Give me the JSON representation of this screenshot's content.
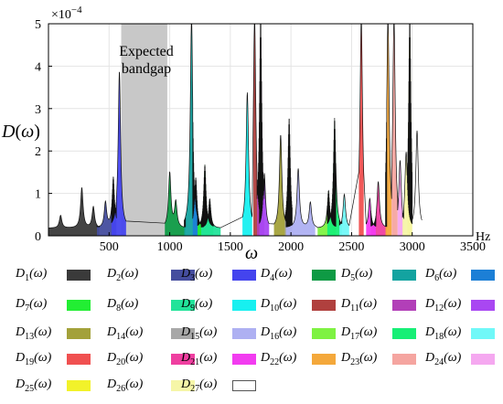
{
  "chart_data": {
    "type": "area",
    "ylabel": "D(ω)",
    "xlabel": "ω",
    "x_unit": "Hz",
    "y_exponent_label": "×10",
    "y_exponent_power": "−4",
    "xlim": [
      0,
      3500
    ],
    "ylim": [
      0,
      5
    ],
    "x_ticks": [
      500,
      1000,
      1500,
      2000,
      2500,
      3000,
      3500
    ],
    "y_ticks": [
      0,
      1,
      2,
      3,
      4,
      5
    ],
    "grid": true,
    "annotation": {
      "lines": [
        "Expected",
        "bandgap"
      ],
      "band_start": 600,
      "band_end": 980
    },
    "legend_placement": "bottom",
    "series": [
      {
        "name": "D1(ω)",
        "sub": "1",
        "color": "#3a3a3a",
        "range": [
          0,
          420
        ],
        "peaks": [
          [
            100,
            0.3
          ],
          [
            275,
            0.95
          ],
          [
            370,
            0.5
          ]
        ]
      },
      {
        "name": "D2(ω)",
        "sub": "2",
        "color": "#454d9e",
        "range": [
          400,
          560
        ],
        "peaks": [
          [
            470,
            0.6
          ],
          [
            535,
            1.2
          ]
        ]
      },
      {
        "name": "D3(ω)",
        "sub": "3",
        "color": "#4444ee",
        "range": [
          520,
          640
        ],
        "peaks": [
          [
            585,
            3.7
          ]
        ]
      },
      {
        "name": "D4(ω)",
        "sub": "4",
        "color": "#0e9a44",
        "range": [
          960,
          1130
        ],
        "peaks": [
          [
            1000,
            1.3
          ],
          [
            1050,
            0.6
          ]
        ]
      },
      {
        "name": "D5(ω)",
        "sub": "5",
        "color": "#13a3a0",
        "range": [
          1120,
          1240
        ],
        "peaks": [
          [
            1180,
            5.0
          ]
        ]
      },
      {
        "name": "D6(ω)",
        "sub": "6",
        "color": "#1c7fd6",
        "range": [
          1190,
          1280
        ],
        "peaks": [
          [
            1215,
            1.2
          ]
        ]
      },
      {
        "name": "D7(ω)",
        "sub": "7",
        "color": "#22ee33",
        "range": [
          1230,
          1360
        ],
        "peaks": [
          [
            1290,
            1.5
          ]
        ]
      },
      {
        "name": "D8(ω)",
        "sub": "8",
        "color": "#22e39a",
        "range": [
          1260,
          1420
        ],
        "peaks": [
          [
            1330,
            0.7
          ]
        ]
      },
      {
        "name": "D9(ω)",
        "sub": "9",
        "color": "#17f0f0",
        "range": [
          1600,
          1680
        ],
        "peaks": [
          [
            1640,
            3.2
          ]
        ]
      },
      {
        "name": "D10(ω)",
        "sub": "10",
        "color": "#b0403e",
        "range": [
          1690,
          1740
        ],
        "peaks": [
          [
            1700,
            5.0
          ]
        ]
      },
      {
        "name": "D11(ω)",
        "sub": "11",
        "color": "#b23fb8",
        "range": [
          1720,
          1780
        ],
        "peaks": [
          [
            1750,
            5.0
          ]
        ]
      },
      {
        "name": "D12(ω)",
        "sub": "12",
        "color": "#a947f2",
        "range": [
          1740,
          1820
        ],
        "peaks": [
          [
            1780,
            1.3
          ]
        ]
      },
      {
        "name": "D13(ω)",
        "sub": "13",
        "color": "#a3a13a",
        "range": [
          1860,
          1960
        ],
        "peaks": [
          [
            1915,
            2.2
          ]
        ]
      },
      {
        "name": "D14(ω)",
        "sub": "14",
        "color": "#a8a8a8",
        "range": [
          1950,
          2010
        ],
        "peaks": [
          [
            1985,
            2.6
          ]
        ]
      },
      {
        "name": "D15(ω)",
        "sub": "15",
        "color": "#aeb0f2",
        "range": [
          1960,
          2200
        ],
        "peaks": [
          [
            2060,
            1.4
          ],
          [
            2160,
            0.6
          ]
        ]
      },
      {
        "name": "D16(ω)",
        "sub": "16",
        "color": "#7ef242",
        "range": [
          2220,
          2370
        ],
        "peaks": [
          [
            2310,
            0.9
          ]
        ]
      },
      {
        "name": "D17(ω)",
        "sub": "17",
        "color": "#17ef76",
        "range": [
          2300,
          2420
        ],
        "peaks": [
          [
            2360,
            2.6
          ]
        ]
      },
      {
        "name": "D18(ω)",
        "sub": "18",
        "color": "#70f8f8",
        "range": [
          2400,
          2480
        ],
        "peaks": [
          [
            2440,
            0.8
          ]
        ]
      },
      {
        "name": "D19(ω)",
        "sub": "19",
        "color": "#f05050",
        "range": [
          2560,
          2600
        ],
        "peaks": [
          [
            2580,
            5.0
          ]
        ]
      },
      {
        "name": "D20(ω)",
        "sub": "20",
        "color": "#ef3fa0",
        "range": [
          2660,
          2790
        ],
        "peaks": [
          [
            2720,
            1.1
          ]
        ]
      },
      {
        "name": "D21(ω)",
        "sub": "21",
        "color": "#f23cf0",
        "range": [
          2620,
          2700
        ],
        "peaks": [
          [
            2650,
            0.7
          ]
        ]
      },
      {
        "name": "D22(ω)",
        "sub": "22",
        "color": "#f4a83b",
        "range": [
          2780,
          2830
        ],
        "peaks": [
          [
            2800,
            5.0
          ]
        ]
      },
      {
        "name": "D23(ω)",
        "sub": "23",
        "color": "#f5a5a0",
        "range": [
          2830,
          2880
        ],
        "peaks": [
          [
            2850,
            5.0
          ]
        ]
      },
      {
        "name": "D24(ω)",
        "sub": "24",
        "color": "#f5a8f0",
        "range": [
          2880,
          2930
        ],
        "peaks": [
          [
            2900,
            1.6
          ]
        ]
      },
      {
        "name": "D25(ω)",
        "sub": "25",
        "color": "#f2f22a",
        "range": [
          2960,
          3000
        ],
        "peaks": [
          [
            2980,
            5.0
          ]
        ]
      },
      {
        "name": "D26(ω)",
        "sub": "26",
        "color": "#f6f6a8",
        "range": [
          2920,
          3000
        ],
        "peaks": [
          [
            2950,
            1.8
          ]
        ]
      },
      {
        "name": "D27(ω)",
        "sub": "27",
        "color": "#ffffff",
        "range": [
          3000,
          3080
        ],
        "peaks": [
          [
            3040,
            2.3
          ]
        ]
      }
    ]
  }
}
